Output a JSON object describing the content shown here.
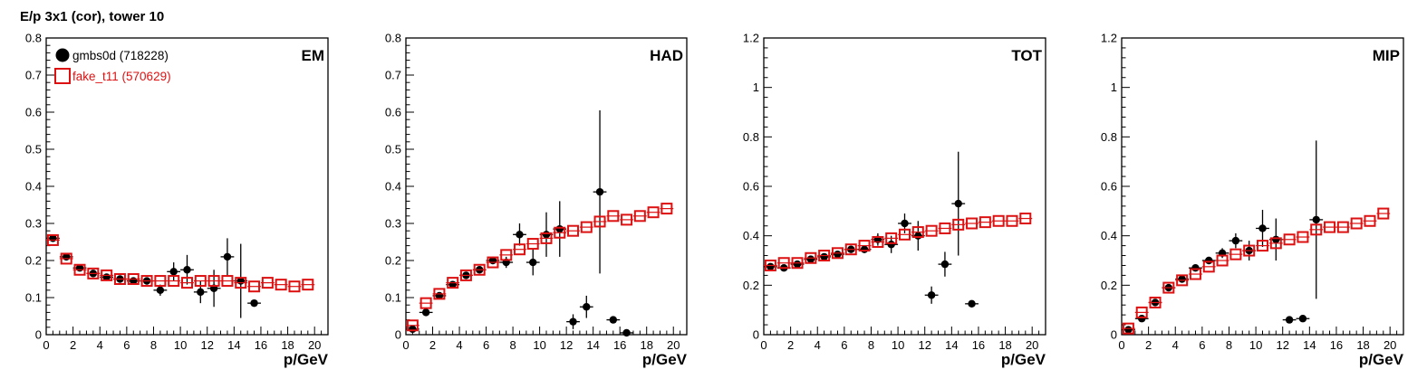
{
  "title": "E/p 3x1 (cor), tower 10",
  "colors": {
    "data": "#000000",
    "mc": "#dd1111"
  },
  "chart_data": [
    {
      "type": "scatter",
      "label": "EM",
      "xlabel": "p/GeV",
      "xlim": [
        0,
        21
      ],
      "ylim": [
        0,
        0.8
      ],
      "xticks": [
        0,
        2,
        4,
        6,
        8,
        10,
        12,
        14,
        16,
        18,
        20
      ],
      "yticks": [
        0,
        0.1,
        0.2,
        0.3,
        0.4,
        0.5,
        0.6,
        0.7,
        0.8
      ],
      "legend": [
        {
          "name": "gmbs0d (718228)",
          "marker": "filled-circle",
          "color": "#000000"
        },
        {
          "name": "fake_t11 (570629)",
          "marker": "open-square",
          "color": "#dd1111"
        }
      ],
      "series": [
        {
          "name": "gmbs0d (718228)",
          "marker": "filled-circle",
          "x": [
            0.5,
            1.5,
            2.5,
            3.5,
            4.5,
            5.5,
            6.5,
            7.5,
            8.5,
            9.5,
            10.5,
            11.5,
            12.5,
            13.5,
            14.5,
            15.5
          ],
          "y": [
            0.26,
            0.21,
            0.18,
            0.165,
            0.155,
            0.15,
            0.145,
            0.145,
            0.12,
            0.17,
            0.175,
            0.115,
            0.125,
            0.21,
            0.145,
            0.085
          ],
          "yerr": [
            0.01,
            0.01,
            0.008,
            0.008,
            0.008,
            0.008,
            0.008,
            0.01,
            0.015,
            0.025,
            0.04,
            0.03,
            0.05,
            0.05,
            0.1,
            0.006
          ]
        },
        {
          "name": "fake_t11 (570629)",
          "marker": "open-square",
          "x": [
            0.5,
            1.5,
            2.5,
            3.5,
            4.5,
            5.5,
            6.5,
            7.5,
            8.5,
            9.5,
            10.5,
            11.5,
            12.5,
            13.5,
            14.5,
            15.5,
            16.5,
            17.5,
            18.5,
            19.5
          ],
          "y": [
            0.255,
            0.205,
            0.175,
            0.165,
            0.16,
            0.15,
            0.15,
            0.145,
            0.145,
            0.145,
            0.14,
            0.145,
            0.145,
            0.145,
            0.14,
            0.13,
            0.14,
            0.135,
            0.13,
            0.135
          ],
          "yerr": []
        }
      ]
    },
    {
      "type": "scatter",
      "label": "HAD",
      "xlabel": "p/GeV",
      "xlim": [
        0,
        21
      ],
      "ylim": [
        0,
        0.8
      ],
      "xticks": [
        0,
        2,
        4,
        6,
        8,
        10,
        12,
        14,
        16,
        18,
        20
      ],
      "yticks": [
        0,
        0.1,
        0.2,
        0.3,
        0.4,
        0.5,
        0.6,
        0.7,
        0.8
      ],
      "legend": [],
      "series": [
        {
          "name": "gmbs0d (718228)",
          "marker": "filled-circle",
          "x": [
            0.5,
            1.5,
            2.5,
            3.5,
            4.5,
            5.5,
            6.5,
            7.5,
            8.5,
            9.5,
            10.5,
            11.5,
            12.5,
            13.5,
            14.5,
            15.5,
            16.5
          ],
          "y": [
            0.015,
            0.06,
            0.105,
            0.135,
            0.16,
            0.175,
            0.2,
            0.195,
            0.27,
            0.195,
            0.27,
            0.285,
            0.035,
            0.075,
            0.385,
            0.04,
            0.005
          ],
          "yerr": [
            0.004,
            0.006,
            0.008,
            0.008,
            0.008,
            0.008,
            0.01,
            0.015,
            0.03,
            0.035,
            0.06,
            0.075,
            0.02,
            0.03,
            0.22,
            0.004,
            0.002
          ]
        },
        {
          "name": "fake_t11 (570629)",
          "marker": "open-square",
          "x": [
            0.5,
            1.5,
            2.5,
            3.5,
            4.5,
            5.5,
            6.5,
            7.5,
            8.5,
            9.5,
            10.5,
            11.5,
            12.5,
            13.5,
            14.5,
            15.5,
            16.5,
            17.5,
            18.5,
            19.5
          ],
          "y": [
            0.025,
            0.085,
            0.11,
            0.14,
            0.16,
            0.175,
            0.195,
            0.215,
            0.23,
            0.245,
            0.26,
            0.275,
            0.28,
            0.29,
            0.305,
            0.32,
            0.31,
            0.32,
            0.33,
            0.34
          ],
          "yerr": []
        }
      ]
    },
    {
      "type": "scatter",
      "label": "TOT",
      "xlabel": "p/GeV",
      "xlim": [
        0,
        21
      ],
      "ylim": [
        0,
        1.2
      ],
      "xticks": [
        0,
        2,
        4,
        6,
        8,
        10,
        12,
        14,
        16,
        18,
        20
      ],
      "yticks": [
        0,
        0.2,
        0.4,
        0.6,
        0.8,
        1,
        1.2
      ],
      "legend": [],
      "series": [
        {
          "name": "gmbs0d (718228)",
          "marker": "filled-circle",
          "x": [
            0.5,
            1.5,
            2.5,
            3.5,
            4.5,
            5.5,
            6.5,
            7.5,
            8.5,
            9.5,
            10.5,
            11.5,
            12.5,
            13.5,
            14.5,
            15.5
          ],
          "y": [
            0.275,
            0.27,
            0.285,
            0.305,
            0.315,
            0.325,
            0.345,
            0.345,
            0.385,
            0.365,
            0.45,
            0.4,
            0.16,
            0.285,
            0.53,
            0.125
          ],
          "yerr": [
            0.008,
            0.008,
            0.008,
            0.008,
            0.008,
            0.01,
            0.01,
            0.015,
            0.025,
            0.035,
            0.04,
            0.06,
            0.035,
            0.05,
            0.21,
            0.006
          ]
        },
        {
          "name": "fake_t11 (570629)",
          "marker": "open-square",
          "x": [
            0.5,
            1.5,
            2.5,
            3.5,
            4.5,
            5.5,
            6.5,
            7.5,
            8.5,
            9.5,
            10.5,
            11.5,
            12.5,
            13.5,
            14.5,
            15.5,
            16.5,
            17.5,
            18.5,
            19.5
          ],
          "y": [
            0.28,
            0.29,
            0.29,
            0.31,
            0.32,
            0.33,
            0.345,
            0.36,
            0.375,
            0.39,
            0.405,
            0.415,
            0.42,
            0.43,
            0.445,
            0.45,
            0.455,
            0.46,
            0.46,
            0.47
          ],
          "yerr": []
        }
      ]
    },
    {
      "type": "scatter",
      "label": "MIP",
      "xlabel": "p/GeV",
      "xlim": [
        0,
        21
      ],
      "ylim": [
        0,
        1.2
      ],
      "xticks": [
        0,
        2,
        4,
        6,
        8,
        10,
        12,
        14,
        16,
        18,
        20
      ],
      "yticks": [
        0,
        0.2,
        0.4,
        0.6,
        0.8,
        1,
        1.2
      ],
      "legend": [],
      "series": [
        {
          "name": "gmbs0d (718228)",
          "marker": "filled-circle",
          "x": [
            0.5,
            1.5,
            2.5,
            3.5,
            4.5,
            5.5,
            6.5,
            7.5,
            8.5,
            9.5,
            10.5,
            11.5,
            12.5,
            13.5,
            14.5
          ],
          "y": [
            0.02,
            0.065,
            0.13,
            0.19,
            0.225,
            0.27,
            0.3,
            0.33,
            0.38,
            0.34,
            0.43,
            0.385,
            0.06,
            0.065,
            0.465
          ],
          "yerr": [
            0.004,
            0.008,
            0.01,
            0.01,
            0.01,
            0.01,
            0.015,
            0.02,
            0.03,
            0.04,
            0.075,
            0.085,
            0.006,
            0.006,
            0.32
          ]
        },
        {
          "name": "fake_t11 (570629)",
          "marker": "open-square",
          "x": [
            0.5,
            1.5,
            2.5,
            3.5,
            4.5,
            5.5,
            6.5,
            7.5,
            8.5,
            9.5,
            10.5,
            11.5,
            12.5,
            13.5,
            14.5,
            15.5,
            16.5,
            17.5,
            18.5,
            19.5
          ],
          "y": [
            0.025,
            0.09,
            0.13,
            0.19,
            0.22,
            0.245,
            0.275,
            0.3,
            0.325,
            0.34,
            0.36,
            0.37,
            0.385,
            0.395,
            0.425,
            0.435,
            0.435,
            0.45,
            0.46,
            0.49
          ],
          "yerr": []
        }
      ]
    }
  ]
}
